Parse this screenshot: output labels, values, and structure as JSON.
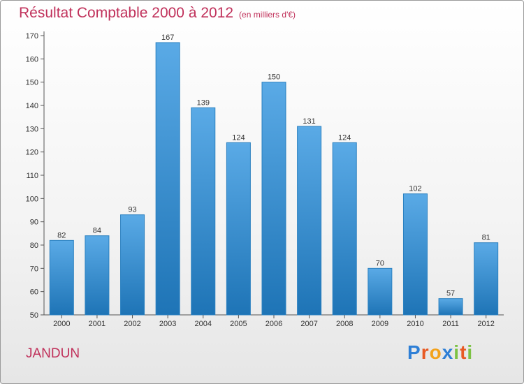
{
  "title": "Résultat Comptable 2000 à 2012",
  "subtitle": "(en milliers d'€)",
  "town": "JANDUN",
  "brand": "Proxiti",
  "colors": {
    "title": "#c0305a",
    "bar_top": "#5aaae6",
    "bar_bottom": "#1e74b6",
    "bar_stroke": "#2a80c0",
    "logo_p": "#2e7fd6",
    "logo_r": "#e85a24",
    "logo_o": "#f3a21b",
    "logo_x": "#2e7fd6",
    "logo_i": "#7cc243",
    "logo_t": "#e85a24",
    "logo_i2": "#7cc243"
  },
  "chart_data": {
    "type": "bar",
    "title": "Résultat Comptable 2000 à 2012",
    "subtitle": "(en milliers d'€)",
    "xlabel": "",
    "ylabel": "",
    "categories": [
      "2000",
      "2001",
      "2002",
      "2003",
      "2004",
      "2005",
      "2006",
      "2007",
      "2008",
      "2009",
      "2010",
      "2011",
      "2012"
    ],
    "values": [
      82,
      84,
      93,
      167,
      139,
      124,
      150,
      131,
      124,
      70,
      102,
      57,
      81
    ],
    "ylim": [
      50,
      170
    ],
    "yticks": [
      50,
      60,
      70,
      80,
      90,
      100,
      110,
      120,
      130,
      140,
      150,
      160,
      170
    ],
    "grid": false
  }
}
